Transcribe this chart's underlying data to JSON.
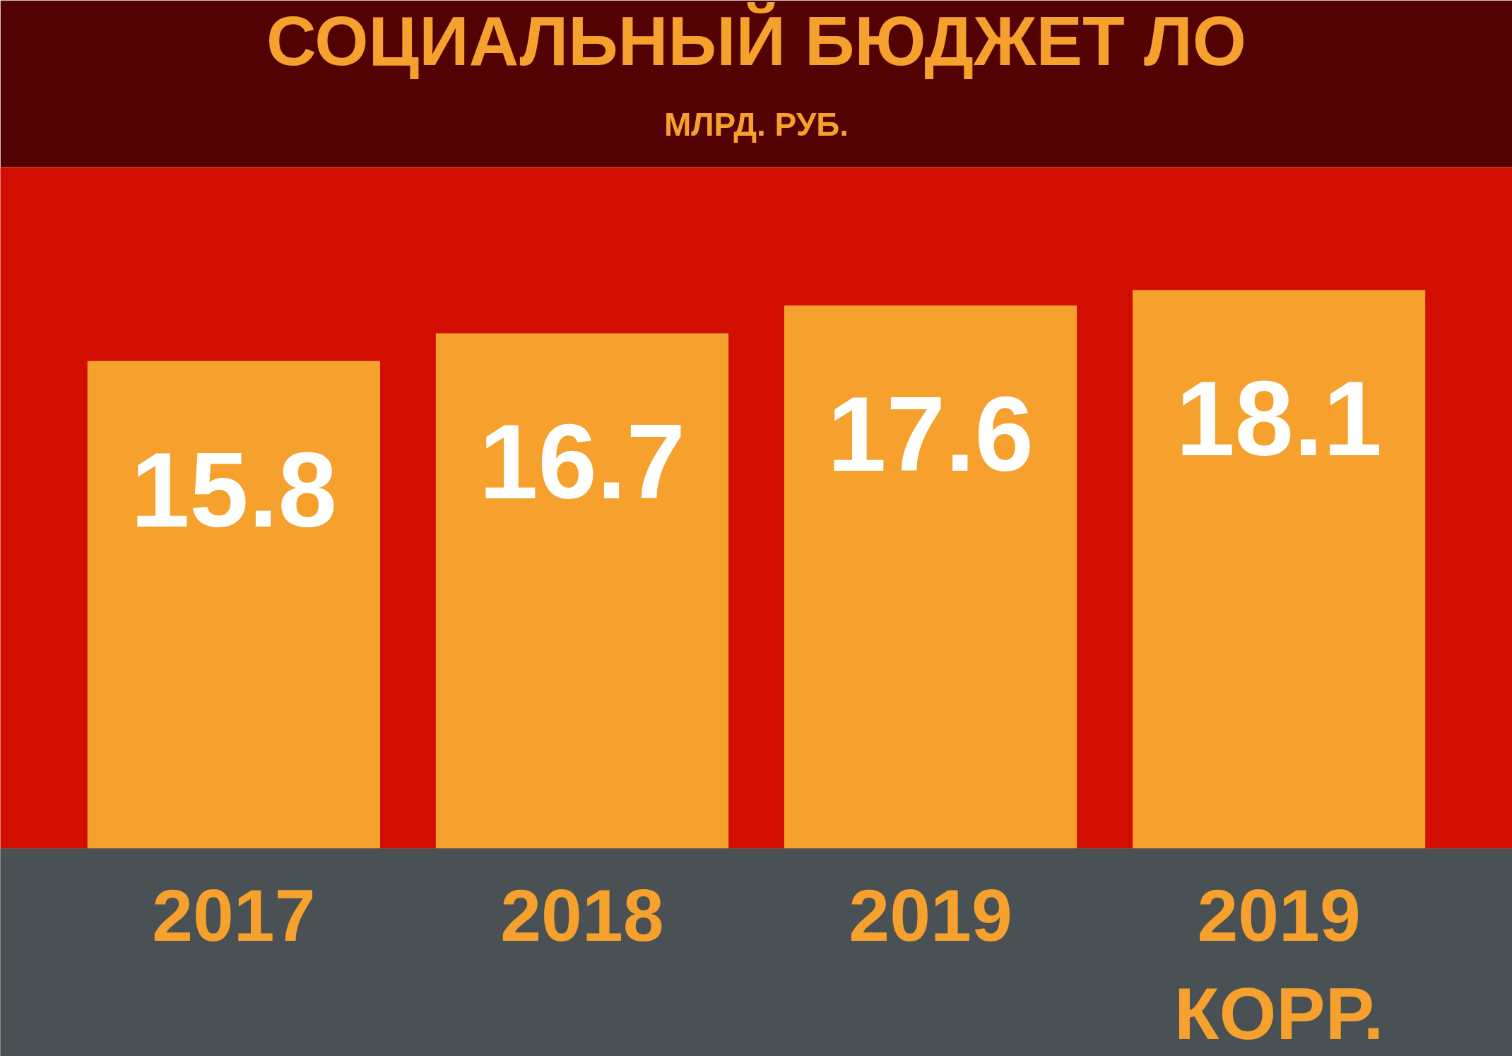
{
  "chart_data": {
    "type": "bar",
    "title": "СОЦИАЛЬНЫЙ БЮДЖЕТ ЛО",
    "subtitle": "МЛРД. РУБ.",
    "categories": [
      "2017",
      "2018",
      "2019",
      "2019\nКОРР."
    ],
    "values": [
      15.8,
      16.7,
      17.6,
      18.1
    ],
    "color": "#f6a02d",
    "data_labels": true
  }
}
